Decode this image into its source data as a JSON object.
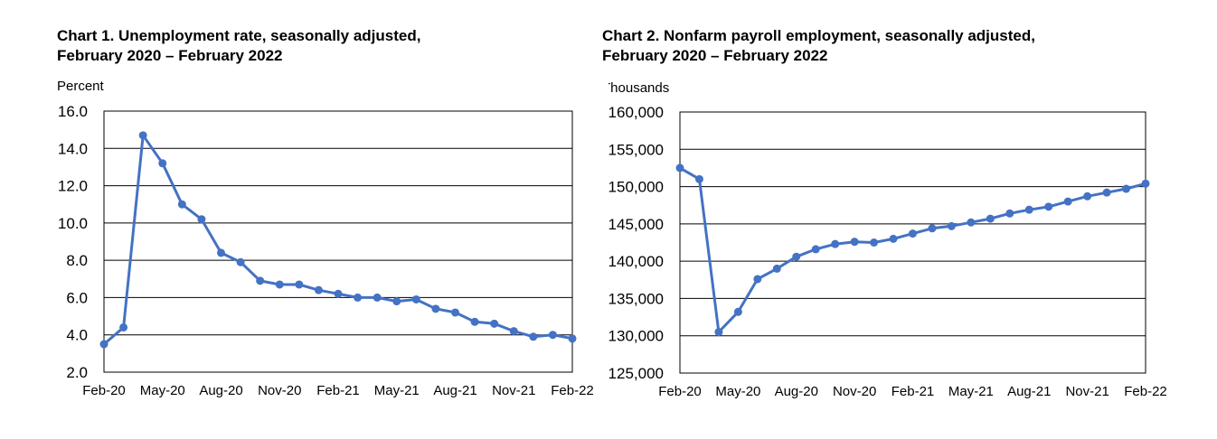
{
  "chart_data": [
    {
      "type": "line",
      "title": "Chart 1. Unemployment rate, seasonally adjusted,\nFebruary 2020 – February 2022",
      "ylabel": "Percent",
      "xlabel": "",
      "ylim": [
        2.0,
        16.0
      ],
      "yticks": [
        "16.0",
        "14.0",
        "12.0",
        "10.0",
        "8.0",
        "6.0",
        "4.0",
        "2.0"
      ],
      "ytick_values": [
        16,
        14,
        12,
        10,
        8,
        6,
        4,
        2
      ],
      "xticks": [
        "Feb-20",
        "May-20",
        "Aug-20",
        "Nov-20",
        "Feb-21",
        "May-21",
        "Aug-21",
        "Nov-21",
        "Feb-22"
      ],
      "grid": true,
      "color": "#4472C4",
      "series": [
        {
          "values": [
            3.5,
            4.4,
            14.7,
            13.2,
            11.0,
            10.2,
            8.4,
            7.9,
            6.9,
            6.7,
            6.7,
            6.4,
            6.2,
            6.0,
            6.0,
            5.8,
            5.9,
            5.4,
            5.2,
            4.7,
            4.6,
            4.2,
            3.9,
            4.0,
            3.8
          ]
        }
      ]
    },
    {
      "type": "line",
      "title": "Chart 2. Nonfarm payroll employment, seasonally adjusted,\nFebruary 2020 – February 2022",
      "ylabel": "Thousands",
      "xlabel": "",
      "ylim": [
        125000,
        160000
      ],
      "yticks": [
        "160,000",
        "155,000",
        "150,000",
        "145,000",
        "140,000",
        "135,000",
        "130,000",
        "125,000"
      ],
      "ytick_values": [
        160000,
        155000,
        150000,
        145000,
        140000,
        135000,
        130000,
        125000
      ],
      "xticks": [
        "Feb-20",
        "May-20",
        "Aug-20",
        "Nov-20",
        "Feb-21",
        "May-21",
        "Aug-21",
        "Nov-21",
        "Feb-22"
      ],
      "grid": true,
      "color": "#4472C4",
      "series": [
        {
          "values": [
            152500,
            151000,
            130500,
            133200,
            137600,
            139000,
            140600,
            141600,
            142300,
            142600,
            142500,
            143000,
            143700,
            144400,
            144700,
            145200,
            145700,
            146400,
            146900,
            147300,
            148000,
            148700,
            149200,
            149700,
            150400
          ]
        }
      ]
    }
  ]
}
